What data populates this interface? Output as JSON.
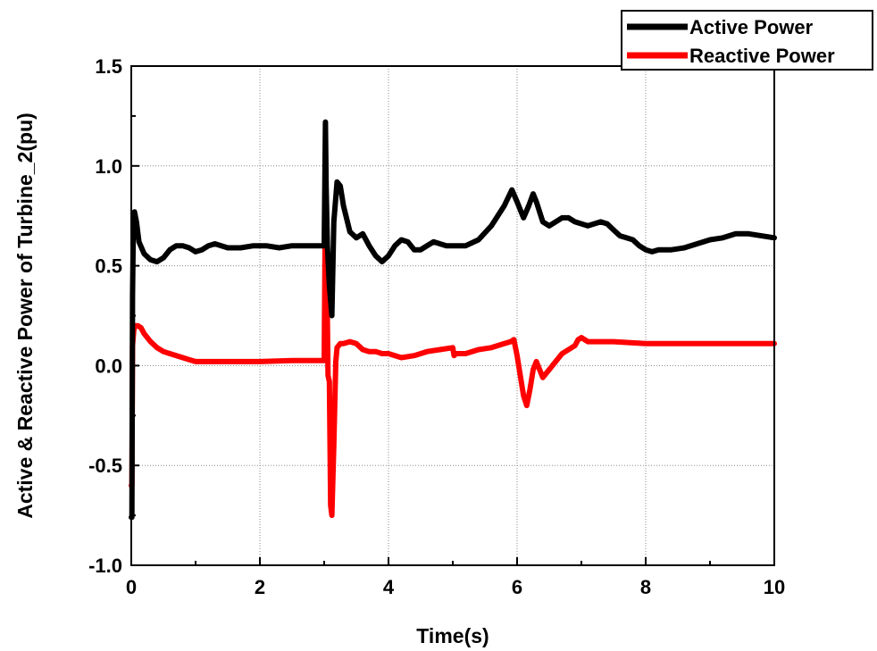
{
  "chart_data": {
    "type": "line",
    "xlabel": "Time(s)",
    "ylabel": "Active & Reactive Power of Turbine_2(pu)",
    "xlim": [
      0,
      10
    ],
    "ylim": [
      -1.0,
      1.5
    ],
    "x_ticks": [
      0,
      2,
      4,
      6,
      8,
      10
    ],
    "x_tick_labels": [
      "0",
      "2",
      "4",
      "6",
      "8",
      "10"
    ],
    "y_ticks": [
      -1.0,
      -0.5,
      0.0,
      0.5,
      1.0,
      1.5
    ],
    "y_tick_labels": [
      "-1.0",
      "-0.5",
      "0.0",
      "0.5",
      "1.0",
      "1.5"
    ],
    "grid": true,
    "legend_position": "top-right",
    "series": [
      {
        "name": "Active Power",
        "color": "#000000",
        "x": [
          0,
          0.01,
          0.02,
          0.03,
          0.05,
          0.08,
          0.12,
          0.2,
          0.3,
          0.4,
          0.5,
          0.6,
          0.7,
          0.8,
          0.9,
          1.0,
          1.1,
          1.2,
          1.3,
          1.4,
          1.5,
          1.7,
          1.9,
          2.1,
          2.3,
          2.5,
          2.7,
          2.9,
          2.98,
          3.0,
          3.02,
          3.03,
          3.05,
          3.08,
          3.12,
          3.15,
          3.2,
          3.25,
          3.3,
          3.4,
          3.5,
          3.6,
          3.7,
          3.8,
          3.9,
          4.0,
          4.1,
          4.2,
          4.3,
          4.4,
          4.5,
          4.6,
          4.7,
          4.8,
          4.9,
          5.0,
          5.2,
          5.4,
          5.6,
          5.8,
          5.92,
          6.0,
          6.1,
          6.18,
          6.25,
          6.3,
          6.4,
          6.5,
          6.6,
          6.7,
          6.8,
          6.9,
          7.0,
          7.1,
          7.2,
          7.3,
          7.4,
          7.5,
          7.6,
          7.7,
          7.8,
          7.9,
          8.0,
          8.1,
          8.2,
          8.4,
          8.6,
          8.8,
          9.0,
          9.2,
          9.4,
          9.5,
          9.6,
          9.8,
          10.0
        ],
        "y": [
          -0.76,
          -0.76,
          0.35,
          0.65,
          0.77,
          0.72,
          0.62,
          0.56,
          0.53,
          0.52,
          0.54,
          0.58,
          0.6,
          0.6,
          0.59,
          0.57,
          0.58,
          0.6,
          0.61,
          0.6,
          0.59,
          0.59,
          0.6,
          0.6,
          0.59,
          0.6,
          0.6,
          0.6,
          0.6,
          0.6,
          1.22,
          0.9,
          0.6,
          0.4,
          0.25,
          0.72,
          0.92,
          0.9,
          0.8,
          0.67,
          0.64,
          0.66,
          0.6,
          0.55,
          0.52,
          0.55,
          0.6,
          0.63,
          0.62,
          0.58,
          0.58,
          0.6,
          0.62,
          0.61,
          0.6,
          0.6,
          0.6,
          0.63,
          0.7,
          0.8,
          0.88,
          0.82,
          0.74,
          0.8,
          0.86,
          0.82,
          0.72,
          0.7,
          0.72,
          0.74,
          0.74,
          0.72,
          0.71,
          0.7,
          0.71,
          0.72,
          0.71,
          0.68,
          0.65,
          0.64,
          0.63,
          0.6,
          0.58,
          0.57,
          0.58,
          0.58,
          0.59,
          0.61,
          0.63,
          0.64,
          0.66,
          0.66,
          0.66,
          0.65,
          0.64
        ]
      },
      {
        "name": "Reactive Power",
        "color": "#ff0000",
        "x": [
          0,
          0.01,
          0.02,
          0.04,
          0.06,
          0.1,
          0.15,
          0.2,
          0.3,
          0.4,
          0.5,
          0.6,
          0.7,
          0.8,
          0.9,
          1.0,
          1.2,
          1.5,
          2.0,
          2.5,
          2.98,
          3.0,
          3.02,
          3.04,
          3.06,
          3.08,
          3.1,
          3.12,
          3.15,
          3.18,
          3.2,
          3.25,
          3.3,
          3.4,
          3.5,
          3.6,
          3.7,
          3.8,
          3.9,
          4.0,
          4.2,
          4.4,
          4.6,
          4.8,
          5.0,
          5.02,
          5.05,
          5.1,
          5.2,
          5.4,
          5.6,
          5.8,
          5.9,
          5.95,
          6.0,
          6.05,
          6.1,
          6.15,
          6.2,
          6.25,
          6.3,
          6.35,
          6.4,
          6.5,
          6.6,
          6.7,
          6.8,
          6.9,
          6.95,
          7.0,
          7.1,
          7.2,
          7.5,
          8.0,
          8.5,
          9.0,
          9.5,
          10.0
        ],
        "y": [
          -0.6,
          -0.6,
          0.1,
          0.18,
          0.2,
          0.2,
          0.19,
          0.16,
          0.12,
          0.09,
          0.07,
          0.06,
          0.05,
          0.04,
          0.03,
          0.02,
          0.02,
          0.02,
          0.02,
          0.025,
          0.025,
          0.025,
          0.9,
          0.5,
          -0.05,
          -0.08,
          -0.7,
          -0.75,
          -0.4,
          0.02,
          0.09,
          0.11,
          0.11,
          0.12,
          0.11,
          0.08,
          0.07,
          0.07,
          0.06,
          0.06,
          0.04,
          0.05,
          0.07,
          0.08,
          0.09,
          0.05,
          0.06,
          0.06,
          0.06,
          0.08,
          0.09,
          0.11,
          0.12,
          0.13,
          0.05,
          -0.05,
          -0.15,
          -0.2,
          -0.12,
          -0.02,
          0.02,
          -0.02,
          -0.06,
          -0.02,
          0.02,
          0.06,
          0.08,
          0.1,
          0.13,
          0.14,
          0.12,
          0.12,
          0.12,
          0.11,
          0.11,
          0.11,
          0.11,
          0.11
        ]
      }
    ]
  }
}
